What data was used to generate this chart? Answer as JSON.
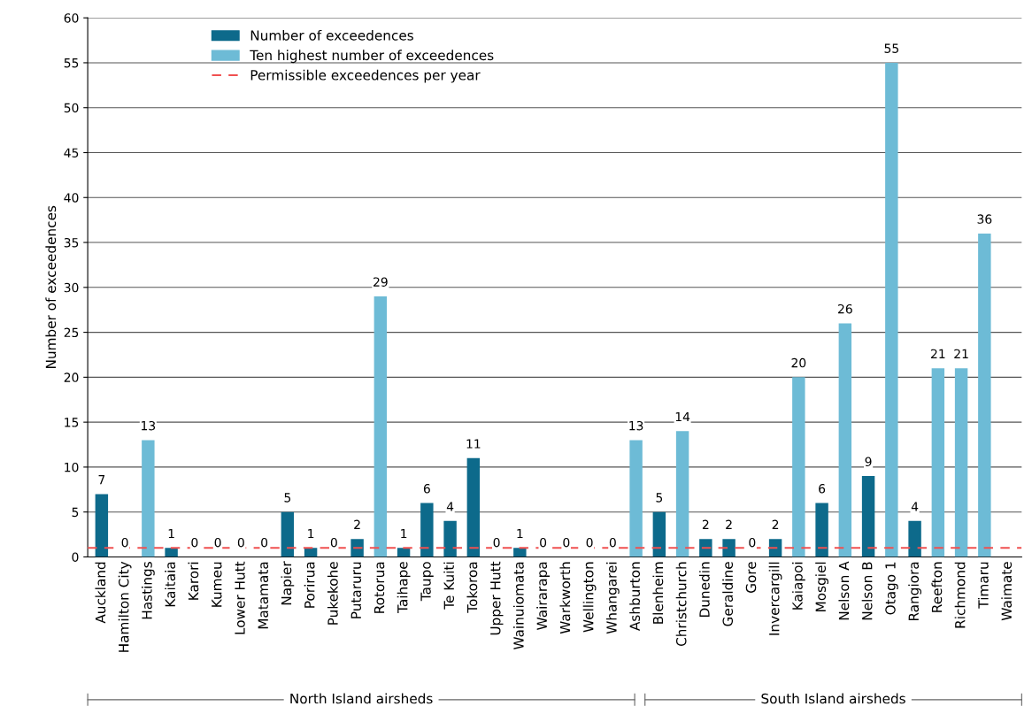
{
  "chart_data": {
    "type": "bar",
    "ylabel": "Number of exceedences",
    "categories": [
      "Auckland",
      "Hamilton City",
      "Hastings",
      "Kaitaia",
      "Karori",
      "Kumeu",
      "Lower Hutt",
      "Matamata",
      "Napier",
      "Porirua",
      "Pukekohe",
      "Putaruru",
      "Rotorua",
      "Taihape",
      "Taupo",
      "Te Kuiti",
      "Tokoroa",
      "Upper Hutt",
      "Wainuiomata",
      "Wairarapa",
      "Warkworth",
      "Wellington",
      "Whangarei",
      "Ashburton",
      "Blenheim",
      "Christchurch",
      "Dunedin",
      "Geraldine",
      "Gore",
      "Invercargill",
      "Kaiapoi",
      "Mosgiel",
      "Nelson A",
      "Nelson B",
      "Otago 1",
      "Rangiora",
      "Reefton",
      "Richmond",
      "Timaru",
      "Waimate"
    ],
    "series": [
      {
        "name": "Number of exceedences",
        "color": "#0d6a8b",
        "values": [
          7,
          0,
          null,
          1,
          0,
          0,
          0,
          0,
          5,
          1,
          0,
          2,
          null,
          1,
          6,
          4,
          11,
          0,
          1,
          0,
          0,
          0,
          0,
          null,
          5,
          null,
          2,
          2,
          0,
          2,
          null,
          6,
          null,
          9,
          null,
          4,
          null,
          null,
          null,
          null
        ]
      },
      {
        "name": "Ten highest number of exceedences",
        "color": "#6dbbd6",
        "values": [
          null,
          null,
          13,
          null,
          null,
          null,
          null,
          null,
          null,
          null,
          null,
          null,
          29,
          null,
          null,
          null,
          null,
          null,
          null,
          null,
          null,
          null,
          null,
          13,
          null,
          14,
          null,
          null,
          null,
          null,
          20,
          null,
          26,
          null,
          55,
          null,
          21,
          21,
          36,
          null
        ]
      }
    ],
    "ref_lines": [
      {
        "axis": "y",
        "value": 1,
        "label": "Permissible exceedences per year",
        "color": "#f05050",
        "line_style": "dashed"
      }
    ],
    "ylim": [
      0,
      60
    ],
    "yticks": [
      0,
      5,
      10,
      15,
      20,
      25,
      30,
      35,
      40,
      45,
      50,
      55,
      60
    ],
    "grid": "y",
    "legend": "top left",
    "data_labels": true,
    "annotations": [
      "North Island airsheds",
      "South Island airsheds"
    ]
  }
}
